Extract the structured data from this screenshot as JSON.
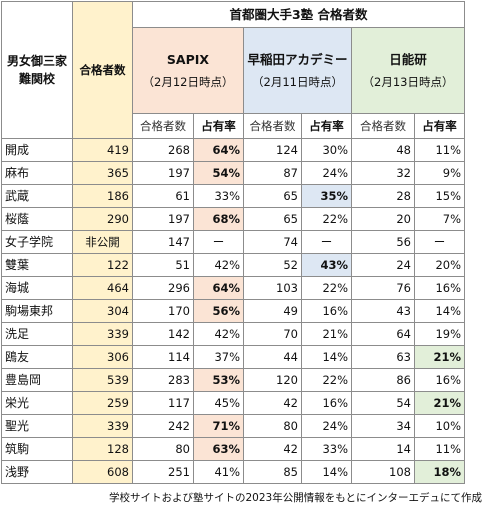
{
  "table": {
    "title": "首都圏大手3塾 合格者数",
    "row_header": "男女御三家\n難関校",
    "count_header": "合格者数",
    "cram_schools": [
      {
        "name": "SAPIX",
        "date": "（2月12日時点）"
      },
      {
        "name": "早稲田アカデミー",
        "date": "（2月11日時点）"
      },
      {
        "name": "日能研",
        "date": "（2月13日時点）"
      }
    ],
    "subheaders": {
      "count": "合格者数",
      "share": "占有率"
    },
    "rows": [
      {
        "school": "開成",
        "total": "419",
        "s_count": "268",
        "s_pct": "64%",
        "w_count": "124",
        "w_pct": "30%",
        "n_count": "48",
        "n_pct": "11%",
        "hl": "s"
      },
      {
        "school": "麻布",
        "total": "365",
        "s_count": "197",
        "s_pct": "54%",
        "w_count": "87",
        "w_pct": "24%",
        "n_count": "32",
        "n_pct": "9%",
        "hl": "s"
      },
      {
        "school": "武蔵",
        "total": "186",
        "s_count": "61",
        "s_pct": "33%",
        "w_count": "65",
        "w_pct": "35%",
        "n_count": "28",
        "n_pct": "15%",
        "hl": "w"
      },
      {
        "school": "桜蔭",
        "total": "290",
        "s_count": "197",
        "s_pct": "68%",
        "w_count": "65",
        "w_pct": "22%",
        "n_count": "20",
        "n_pct": "7%",
        "hl": "s"
      },
      {
        "school": "女子学院",
        "total": "非公開",
        "s_count": "147",
        "s_pct": "ー",
        "w_count": "74",
        "w_pct": "ー",
        "n_count": "56",
        "n_pct": "ー",
        "hl": ""
      },
      {
        "school": "雙葉",
        "total": "122",
        "s_count": "51",
        "s_pct": "42%",
        "w_count": "52",
        "w_pct": "43%",
        "n_count": "24",
        "n_pct": "20%",
        "hl": "w"
      },
      {
        "school": "海城",
        "total": "464",
        "s_count": "296",
        "s_pct": "64%",
        "w_count": "103",
        "w_pct": "22%",
        "n_count": "76",
        "n_pct": "16%",
        "hl": "s"
      },
      {
        "school": "駒場東邦",
        "total": "304",
        "s_count": "170",
        "s_pct": "56%",
        "w_count": "49",
        "w_pct": "16%",
        "n_count": "43",
        "n_pct": "14%",
        "hl": "s"
      },
      {
        "school": "洗足",
        "total": "339",
        "s_count": "142",
        "s_pct": "42%",
        "w_count": "70",
        "w_pct": "21%",
        "n_count": "64",
        "n_pct": "19%",
        "hl": ""
      },
      {
        "school": "鴎友",
        "total": "306",
        "s_count": "114",
        "s_pct": "37%",
        "w_count": "44",
        "w_pct": "14%",
        "n_count": "63",
        "n_pct": "21%",
        "hl": "n"
      },
      {
        "school": "豊島岡",
        "total": "539",
        "s_count": "283",
        "s_pct": "53%",
        "w_count": "120",
        "w_pct": "22%",
        "n_count": "86",
        "n_pct": "16%",
        "hl": "s"
      },
      {
        "school": "栄光",
        "total": "259",
        "s_count": "117",
        "s_pct": "45%",
        "w_count": "42",
        "w_pct": "16%",
        "n_count": "54",
        "n_pct": "21%",
        "hl": "n"
      },
      {
        "school": "聖光",
        "total": "339",
        "s_count": "242",
        "s_pct": "71%",
        "w_count": "80",
        "w_pct": "24%",
        "n_count": "34",
        "n_pct": "10%",
        "hl": "s"
      },
      {
        "school": "筑駒",
        "total": "128",
        "s_count": "80",
        "s_pct": "63%",
        "w_count": "42",
        "w_pct": "33%",
        "n_count": "14",
        "n_pct": "11%",
        "hl": "s"
      },
      {
        "school": "浅野",
        "total": "608",
        "s_count": "251",
        "s_pct": "41%",
        "w_count": "85",
        "w_pct": "14%",
        "n_count": "108",
        "n_pct": "18%",
        "hl": "n"
      }
    ]
  },
  "source_note": "学校サイトおよび塾サイトの2023年公開情報をもとにインターエデュにて作成",
  "colors": {
    "sapix": "#fbe4d5",
    "waseda": "#dde7f3",
    "nichinoken": "#e2efd9",
    "count_column": "#fff2cc",
    "border": "#8c8c8c"
  }
}
